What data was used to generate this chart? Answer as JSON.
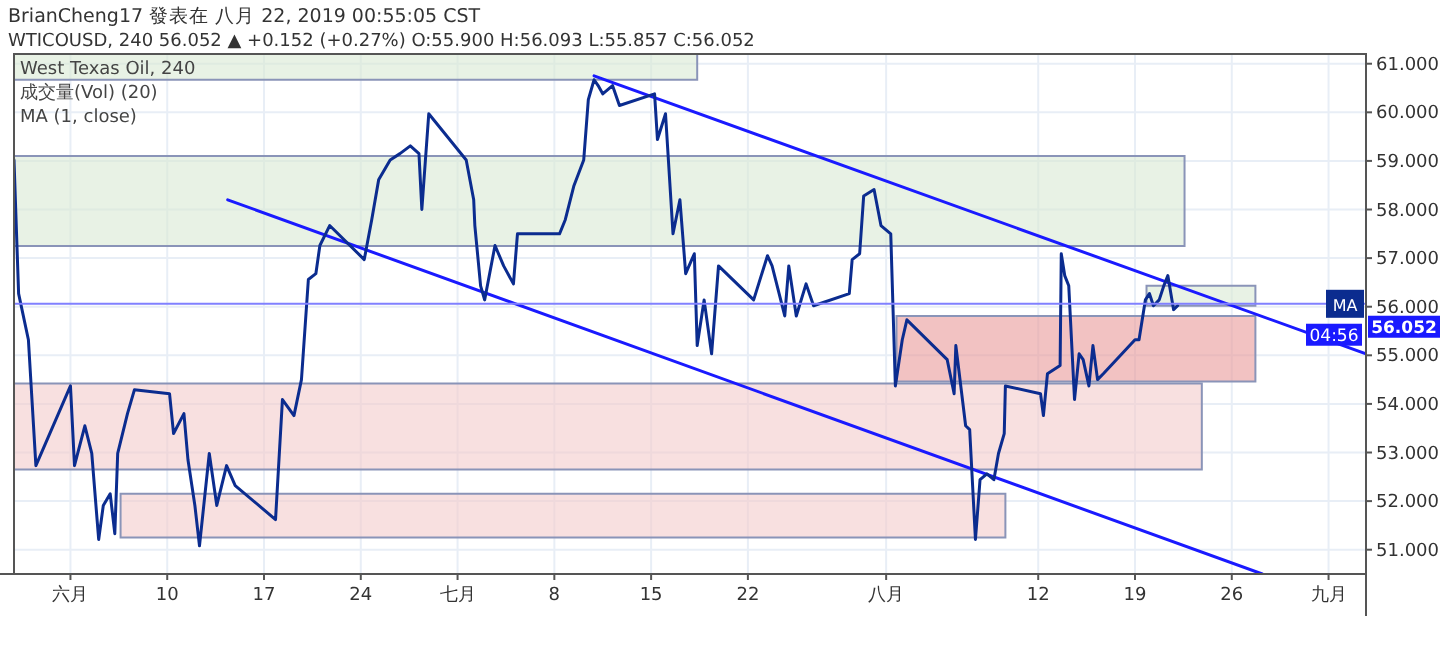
{
  "chart_data": {
    "type": "line",
    "title": "BrianCheng17 發表在 八月 22, 2019 00:55:05 CST",
    "subtitle": "WTICOUSD, 240 56.052 ▲ +0.152 (+0.27%) O:55.900 H:56.093 L:55.857 C:56.052",
    "xlim": [
      "2019-05-29T22:00",
      "2019-09-04T17:00"
    ],
    "ylim": [
      50.5,
      61.2
    ],
    "xticks": [
      {
        "value": "2019-06-03",
        "label": "六月"
      },
      {
        "value": "2019-06-10",
        "label": "10"
      },
      {
        "value": "2019-06-17",
        "label": "17"
      },
      {
        "value": "2019-06-24",
        "label": "24"
      },
      {
        "value": "2019-07-01",
        "label": "七月"
      },
      {
        "value": "2019-07-08",
        "label": "8"
      },
      {
        "value": "2019-07-15",
        "label": "15"
      },
      {
        "value": "2019-07-22",
        "label": "22"
      },
      {
        "value": "2019-08-01",
        "label": "八月"
      },
      {
        "value": "2019-08-12",
        "label": "12"
      },
      {
        "value": "2019-08-19",
        "label": "19"
      },
      {
        "value": "2019-08-26",
        "label": "26"
      },
      {
        "value": "2019-09-02",
        "label": "九月"
      }
    ],
    "yticks": [
      {
        "value": 51,
        "label": "51.000"
      },
      {
        "value": 52,
        "label": "52.000"
      },
      {
        "value": 53,
        "label": "53.000"
      },
      {
        "value": 54,
        "label": "54.000"
      },
      {
        "value": 55,
        "label": "55.000"
      },
      {
        "value": 56,
        "label": "56.000"
      },
      {
        "value": 57,
        "label": "57.000"
      },
      {
        "value": 58,
        "label": "58.000"
      },
      {
        "value": 59,
        "label": "59.000"
      },
      {
        "value": 60,
        "label": "60.000"
      },
      {
        "value": 61,
        "label": "61.000"
      }
    ],
    "grid": true,
    "series": [
      {
        "type": "area",
        "color": "#d9ead3",
        "x": [
          "2019-05-29T22:00",
          "2019-07-18T08:00"
        ],
        "lower": [
          60.67,
          60.67
        ],
        "upper": [
          61.2,
          61.2
        ],
        "values": [
          null,
          null
        ]
      },
      {
        "type": "area",
        "color": "#d9ead3",
        "x": [
          "2019-05-29T22:00",
          "2019-08-22T14:00"
        ],
        "lower": [
          57.25,
          57.25
        ],
        "upper": [
          59.1,
          59.1
        ],
        "values": [
          null,
          null
        ]
      },
      {
        "type": "area",
        "color": "#f4cccc",
        "x": [
          "2019-05-29T22:00",
          "2019-08-23T20:00"
        ],
        "lower": [
          52.65,
          52.65
        ],
        "upper": [
          54.42,
          54.42
        ],
        "values": [
          null,
          null
        ]
      },
      {
        "type": "area",
        "color": "#ea9999",
        "x": [
          "2019-08-01T18:00",
          "2019-08-27T17:00"
        ],
        "lower": [
          54.46,
          54.46
        ],
        "upper": [
          55.81,
          55.81
        ],
        "values": [
          null,
          null
        ]
      },
      {
        "type": "area",
        "color": "#f4cccc",
        "x": [
          "2019-06-06T15:00",
          "2019-08-09T15:00"
        ],
        "lower": [
          51.25,
          51.25
        ],
        "upper": [
          52.15,
          52.15
        ],
        "values": [
          null,
          null
        ]
      },
      {
        "type": "area",
        "color": "#d9ead3",
        "x": [
          "2019-08-19T20:00",
          "2019-08-27T17:00"
        ],
        "lower": [
          56.02,
          56.02
        ],
        "upper": [
          56.43,
          56.43
        ],
        "values": [
          null,
          null
        ]
      },
      {
        "type": "line",
        "color": "#1a1aff",
        "x": [
          "2019-07-10T21:00",
          "2019-09-04T17:00"
        ],
        "values": [
          60.75,
          55.03
        ]
      },
      {
        "type": "line",
        "color": "#1a1aff",
        "x": [
          "2019-06-14T09:00",
          "2019-08-28T05:00"
        ],
        "values": [
          58.2,
          50.5
        ]
      },
      {
        "color": "#0b2c8f",
        "x": [
          "2019-05-29T22:00",
          "2019-05-30T06:00",
          "2019-05-30T23:00",
          "2019-05-31T12:00",
          "2019-06-03T00:00",
          "2019-06-03T07:00",
          "2019-06-04T01:00",
          "2019-06-04T13:00",
          "2019-06-05T01:00",
          "2019-06-05T09:00",
          "2019-06-05T21:00",
          "2019-06-06T05:00",
          "2019-06-06T10:00",
          "2019-06-07T03:00",
          "2019-06-07T15:00",
          "2019-06-10T04:00",
          "2019-06-10T11:00",
          "2019-06-11T05:00",
          "2019-06-11T12:00",
          "2019-06-12T00:00",
          "2019-06-12T08:00",
          "2019-06-13T01:00",
          "2019-06-13T14:00",
          "2019-06-14T07:00",
          "2019-06-14T22:00",
          "2019-06-17T20:00",
          "2019-06-18T08:00",
          "2019-06-19T04:00",
          "2019-06-19T17:00",
          "2019-06-20T05:00",
          "2019-06-20T18:00",
          "2019-06-21T01:00",
          "2019-06-21T18:00",
          "2019-06-24T06:00",
          "2019-06-24T19:00",
          "2019-06-25T07:00",
          "2019-06-26T03:00",
          "2019-06-26T20:00",
          "2019-06-27T14:00",
          "2019-06-28T05:00",
          "2019-06-28T10:00",
          "2019-06-28T22:00",
          "2019-07-01T15:00",
          "2019-07-02T04:00",
          "2019-07-02T06:00",
          "2019-07-02T16:00",
          "2019-07-02T23:00",
          "2019-07-03T17:00",
          "2019-07-04T08:00",
          "2019-07-05T01:00",
          "2019-07-05T08:00",
          "2019-07-08T09:00",
          "2019-07-08T19:00",
          "2019-07-09T10:00",
          "2019-07-10T03:00",
          "2019-07-10T11:00",
          "2019-07-10T21:00",
          "2019-07-11T04:00",
          "2019-07-11T12:00",
          "2019-07-12T05:00",
          "2019-07-12T17:00",
          "2019-07-15T06:00",
          "2019-07-15T11:00",
          "2019-07-16T01:00",
          "2019-07-16T14:00",
          "2019-07-17T02:00",
          "2019-07-17T12:00",
          "2019-07-18T03:00",
          "2019-07-18T08:00",
          "2019-07-18T20:00",
          "2019-07-19T09:00",
          "2019-07-19T21:00",
          "2019-07-22T10:00",
          "2019-07-23T10:00",
          "2019-07-23T18:00",
          "2019-07-24T16:00",
          "2019-07-24T23:00",
          "2019-07-25T12:00",
          "2019-07-26T05:00",
          "2019-07-26T18:00",
          "2019-07-29T08:00",
          "2019-07-29T13:00",
          "2019-07-30T02:00",
          "2019-07-30T09:00",
          "2019-07-31T03:00",
          "2019-07-31T15:00",
          "2019-08-01T08:00",
          "2019-08-01T16:00",
          "2019-08-02T04:00",
          "2019-08-02T12:00",
          "2019-08-05T10:00",
          "2019-08-05T22:00",
          "2019-08-06T01:00",
          "2019-08-06T18:00",
          "2019-08-07T01:00",
          "2019-08-07T11:00",
          "2019-08-07T19:00",
          "2019-08-08T07:00",
          "2019-08-08T19:00",
          "2019-08-09T03:00",
          "2019-08-09T13:00",
          "2019-08-09T15:00",
          "2019-08-12T04:00",
          "2019-08-12T09:00",
          "2019-08-12T16:00",
          "2019-08-13T14:00",
          "2019-08-13T16:00",
          "2019-08-13T22:00",
          "2019-08-14T05:00",
          "2019-08-14T15:00",
          "2019-08-14T23:00",
          "2019-08-15T06:00",
          "2019-08-15T16:00",
          "2019-08-15T23:00",
          "2019-08-16T07:00",
          "2019-08-16T17:00",
          "2019-08-19T00:00",
          "2019-08-19T07:00",
          "2019-08-19T18:00",
          "2019-08-20T01:00",
          "2019-08-20T08:00",
          "2019-08-20T18:00",
          "2019-08-21T02:00",
          "2019-08-21T09:00",
          "2019-08-21T19:00",
          "2019-08-22T02:00"
        ],
        "values": [
          59.02,
          56.27,
          55.32,
          52.73,
          54.37,
          52.73,
          53.55,
          52.98,
          51.21,
          51.91,
          52.15,
          51.33,
          52.98,
          53.8,
          54.29,
          54.21,
          53.39,
          53.8,
          52.85,
          51.91,
          51.08,
          52.98,
          51.91,
          52.73,
          52.32,
          51.62,
          54.09,
          53.76,
          54.5,
          56.56,
          56.68,
          57.26,
          57.67,
          56.97,
          57.79,
          58.61,
          59.02,
          59.15,
          59.31,
          59.15,
          58.0,
          59.97,
          59.02,
          58.2,
          57.67,
          56.43,
          56.14,
          57.26,
          56.84,
          56.47,
          57.5,
          57.5,
          57.79,
          58.49,
          59.02,
          60.26,
          60.67,
          60.55,
          60.38,
          60.55,
          60.14,
          60.38,
          59.44,
          59.97,
          57.5,
          58.2,
          56.68,
          57.09,
          55.2,
          56.14,
          55.03,
          56.84,
          56.14,
          57.05,
          56.84,
          55.81,
          56.84,
          55.81,
          56.47,
          56.02,
          56.27,
          56.97,
          57.09,
          58.28,
          58.41,
          57.67,
          57.5,
          54.37,
          55.32,
          55.73,
          54.91,
          54.21,
          55.2,
          53.55,
          53.47,
          51.21,
          52.44,
          52.56,
          52.44,
          52.98,
          53.39,
          54.37,
          54.21,
          53.76,
          54.62,
          54.79,
          57.09,
          56.64,
          56.43,
          54.09,
          55.03,
          54.91,
          54.37,
          55.2,
          54.5,
          54.62,
          55.32,
          55.32,
          56.14,
          56.27,
          56.02,
          56.14,
          56.43,
          56.64,
          55.94,
          56.02
        ]
      }
    ],
    "ref_lines": [
      {
        "axis": "y",
        "value": 56.06,
        "label": "MA",
        "color": "#8080ff"
      }
    ],
    "annotations": [
      "West Texas Oil, 240",
      "成交量(Vol) (20)",
      "MA (1, close)",
      "56.052",
      "04:56"
    ]
  }
}
